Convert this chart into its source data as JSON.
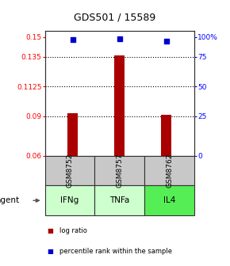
{
  "title": "GDS501 / 15589",
  "samples": [
    "GSM8752",
    "GSM8757",
    "GSM8762"
  ],
  "agents": [
    "IFNg",
    "TNFa",
    "IL4"
  ],
  "x_positions": [
    1,
    2,
    3
  ],
  "log_ratios": [
    0.092,
    0.136,
    0.091
  ],
  "percentile_ranks": [
    0.148,
    0.149,
    0.147
  ],
  "baseline": 0.06,
  "ylim": [
    0.06,
    0.155
  ],
  "yticks_left": [
    0.06,
    0.09,
    0.1125,
    0.135,
    0.15
  ],
  "ytick_labels_left": [
    "0.06",
    "0.09",
    "0.1125",
    "0.135",
    "0.15"
  ],
  "yticks_right": [
    0.06,
    0.09,
    0.1125,
    0.135,
    0.15
  ],
  "ytick_labels_right": [
    "0",
    "25",
    "50",
    "75",
    "100%"
  ],
  "hlines": [
    0.09,
    0.1125,
    0.135
  ],
  "bar_color": "#aa0000",
  "dot_color": "#0000cc",
  "sample_box_color": "#c8c8c8",
  "agent_colors": [
    "#ccffcc",
    "#ccffcc",
    "#55ee55"
  ],
  "box_outline": "#333333",
  "legend_bar_color": "#aa0000",
  "legend_dot_color": "#0000cc"
}
